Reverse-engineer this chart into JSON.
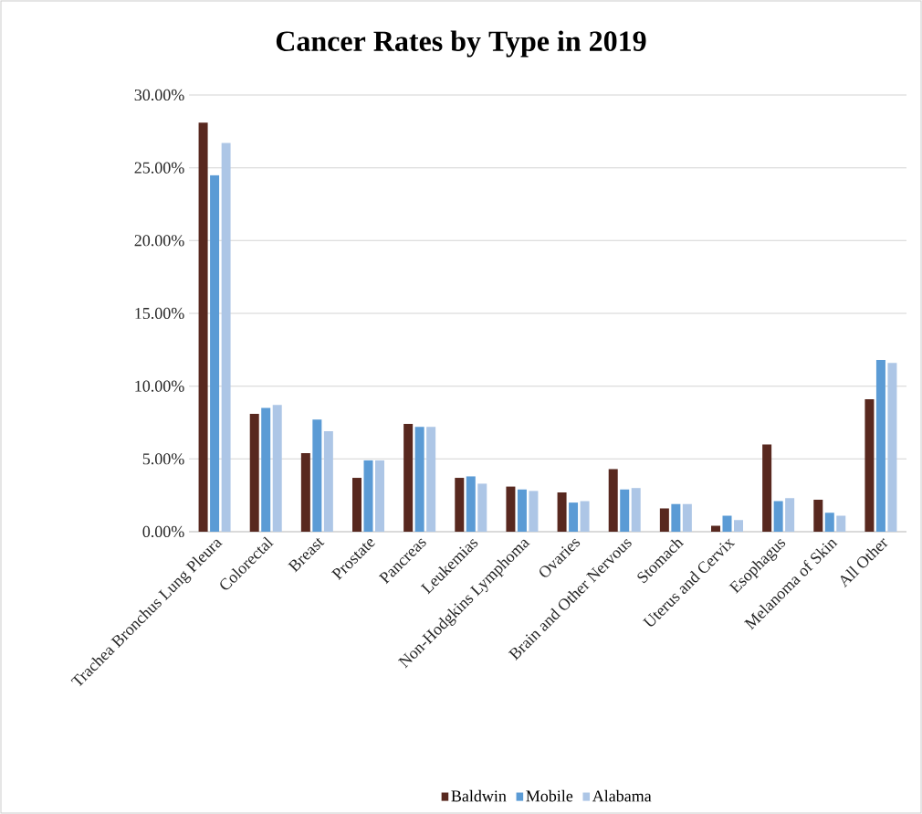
{
  "chart_data": {
    "type": "bar",
    "title": "Cancer Rates by Type in 2019",
    "categories": [
      "Trachea Bronchus Lung Pleura",
      "Colorectal",
      "Breast",
      "Prostate",
      "Pancreas",
      "Leukemias",
      "Non-Hodgkins Lymphoma",
      "Ovaries",
      "Brain and Other Nervous",
      "Stomach",
      "Uterus and Cervix",
      "Esophagus",
      "Melanoma of Skin",
      "All Other"
    ],
    "series": [
      {
        "name": "Baldwin",
        "color": "#58281f",
        "values": [
          28.1,
          8.1,
          5.4,
          3.7,
          7.4,
          3.7,
          3.1,
          2.7,
          4.3,
          1.6,
          0.4,
          6.0,
          2.2,
          9.1
        ]
      },
      {
        "name": "Mobile",
        "color": "#5b9bd5",
        "values": [
          24.5,
          8.5,
          7.7,
          4.9,
          7.2,
          3.8,
          2.9,
          2.0,
          2.9,
          1.9,
          1.1,
          2.1,
          1.3,
          11.8
        ]
      },
      {
        "name": "Alabama",
        "color": "#adc6e6",
        "values": [
          26.7,
          8.7,
          6.9,
          4.9,
          7.2,
          3.3,
          2.8,
          2.1,
          3.0,
          1.9,
          0.8,
          2.3,
          1.1,
          11.6
        ]
      }
    ],
    "ylim": [
      0,
      30
    ],
    "yticks": [
      {
        "value": 0,
        "label": "0.00%"
      },
      {
        "value": 5,
        "label": "5.00%"
      },
      {
        "value": 10,
        "label": "10.00%"
      },
      {
        "value": 15,
        "label": "15.00%"
      },
      {
        "value": 20,
        "label": "20.00%"
      },
      {
        "value": 25,
        "label": "25.00%"
      },
      {
        "value": 30,
        "label": "30.00%"
      }
    ],
    "grid": "y",
    "legend": "bottom"
  }
}
